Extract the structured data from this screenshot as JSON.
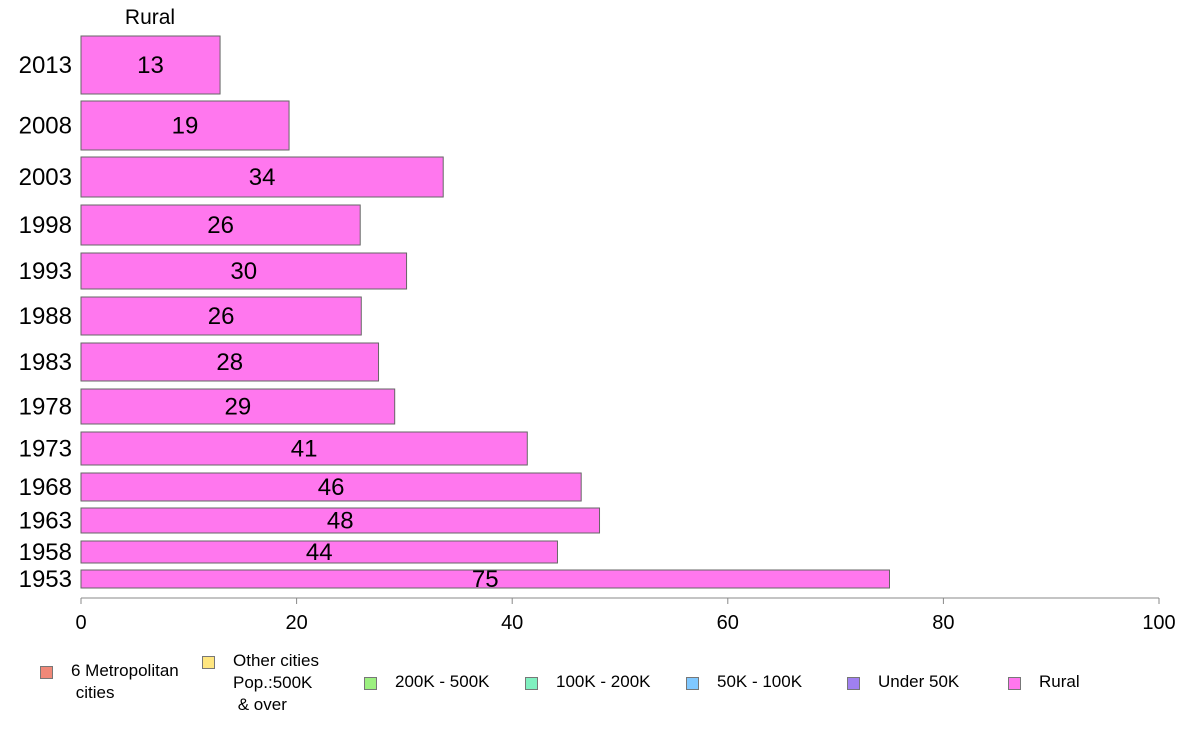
{
  "chart_data": {
    "type": "bar",
    "orientation": "horizontal",
    "panel_title": "Rural",
    "categories": [
      "2013",
      "2008",
      "2003",
      "1998",
      "1993",
      "1988",
      "1983",
      "1978",
      "1973",
      "1968",
      "1963",
      "1958",
      "1953"
    ],
    "values": [
      13,
      19,
      34,
      26,
      30,
      26,
      28,
      29,
      41,
      46,
      48,
      44,
      75
    ],
    "bar_values": [
      12.9,
      19.3,
      33.6,
      25.9,
      30.2,
      26.0,
      27.6,
      29.1,
      41.4,
      46.4,
      48.1,
      44.2,
      75.0
    ],
    "xlim": [
      0,
      100
    ],
    "xticks": [
      0,
      20,
      40,
      60,
      80,
      100
    ],
    "bar_color": "#ff77ee",
    "grid": false,
    "legend_position": "bottom",
    "legend": [
      {
        "label": "6 Metropolitan\n cities",
        "color": "#f08878"
      },
      {
        "label": "Other cities\nPop.:500K\n & over",
        "color": "#ffe680"
      },
      {
        "label": "200K - 500K",
        "color": "#9cf080"
      },
      {
        "label": "100K - 200K",
        "color": "#80f0c0"
      },
      {
        "label": "50K - 100K",
        "color": "#80c8ff"
      },
      {
        "label": "Under 50K",
        "color": "#a080f0"
      },
      {
        "label": "Rural",
        "color": "#ff77ee"
      }
    ]
  }
}
